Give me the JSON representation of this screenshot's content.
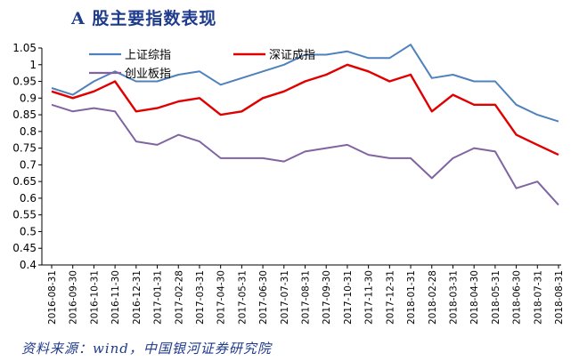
{
  "title": "A 股主要指数表现",
  "source": "资料来源：wind，中国银河证券研究院",
  "chart_data": {
    "type": "line",
    "ylim": [
      0.4,
      1.05
    ],
    "yticks": [
      "1.05",
      "1",
      "0.95",
      "0.9",
      "0.85",
      "0.8",
      "0.75",
      "0.7",
      "0.65",
      "0.6",
      "0.55",
      "0.5",
      "0.45",
      "0.4"
    ],
    "x": [
      "2016-08-31",
      "2016-09-30",
      "2016-10-31",
      "2016-11-30",
      "2016-12-31",
      "2017-01-31",
      "2017-02-28",
      "2017-03-31",
      "2017-04-30",
      "2017-05-31",
      "2017-06-30",
      "2017-07-31",
      "2017-08-31",
      "2017-09-30",
      "2017-10-31",
      "2017-11-30",
      "2017-12-31",
      "2018-01-31",
      "2018-02-28",
      "2018-03-31",
      "2018-04-30",
      "2018-05-31",
      "2018-06-30",
      "2018-07-31",
      "2018-08-31"
    ],
    "grid": false,
    "legend_position": "top-center",
    "series": [
      {
        "name": "上证综指",
        "color": "#4f81bd",
        "values": [
          0.93,
          0.91,
          0.95,
          0.98,
          0.95,
          0.95,
          0.97,
          0.98,
          0.94,
          0.96,
          0.98,
          1.0,
          1.03,
          1.03,
          1.04,
          1.02,
          1.02,
          1.06,
          0.96,
          0.97,
          0.95,
          0.95,
          0.88,
          0.85,
          0.83
        ]
      },
      {
        "name": "深证成指",
        "color": "#e00000",
        "values": [
          0.92,
          0.9,
          0.92,
          0.95,
          0.86,
          0.87,
          0.89,
          0.9,
          0.85,
          0.86,
          0.9,
          0.92,
          0.95,
          0.97,
          1.0,
          0.98,
          0.95,
          0.97,
          0.86,
          0.91,
          0.88,
          0.88,
          0.79,
          0.76,
          0.73
        ]
      },
      {
        "name": "创业板指",
        "color": "#8064a2",
        "values": [
          0.88,
          0.86,
          0.87,
          0.86,
          0.77,
          0.76,
          0.79,
          0.77,
          0.72,
          0.72,
          0.72,
          0.71,
          0.74,
          0.75,
          0.76,
          0.73,
          0.72,
          0.72,
          0.66,
          0.72,
          0.75,
          0.74,
          0.63,
          0.65,
          0.58
        ]
      }
    ]
  }
}
